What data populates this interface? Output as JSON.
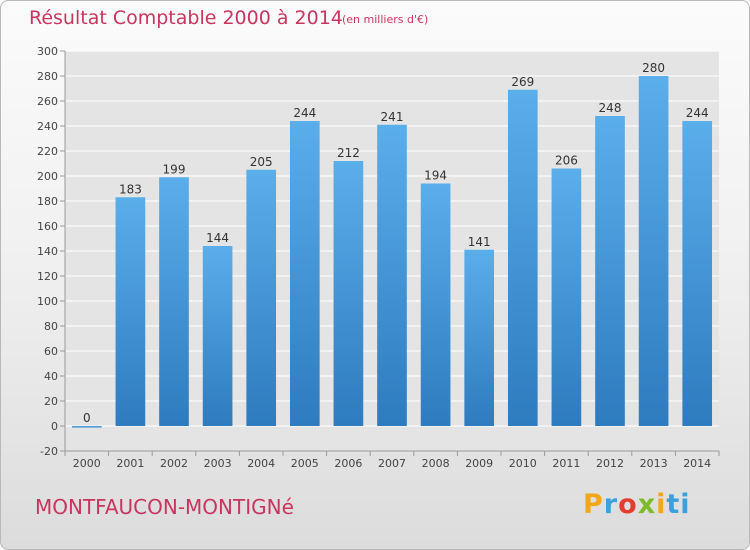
{
  "chart_data": {
    "type": "bar",
    "title": "Résultat Comptable 2000 à 2014",
    "subtitle": "(en milliers d'€)",
    "categories": [
      "2000",
      "2001",
      "2002",
      "2003",
      "2004",
      "2005",
      "2006",
      "2007",
      "2008",
      "2009",
      "2010",
      "2011",
      "2012",
      "2013",
      "2014"
    ],
    "values": [
      0,
      183,
      199,
      144,
      205,
      244,
      212,
      241,
      194,
      141,
      269,
      206,
      248,
      280,
      244
    ],
    "ylim": [
      -20,
      300
    ],
    "yticks": [
      -20,
      0,
      20,
      40,
      60,
      80,
      100,
      120,
      140,
      160,
      180,
      200,
      220,
      240,
      260,
      280,
      300
    ],
    "xlabel": "",
    "ylabel": "",
    "grid": true,
    "colors": {
      "bar_light": "#5aaeea",
      "bar_dark": "#2e7bbf",
      "grid": "#ffffff",
      "title": "#c9355f"
    }
  },
  "location": "MONTFAUCON-MONTIGNé",
  "logo": {
    "letters": [
      "P",
      "r",
      "o",
      "x",
      "i",
      "ti"
    ]
  }
}
